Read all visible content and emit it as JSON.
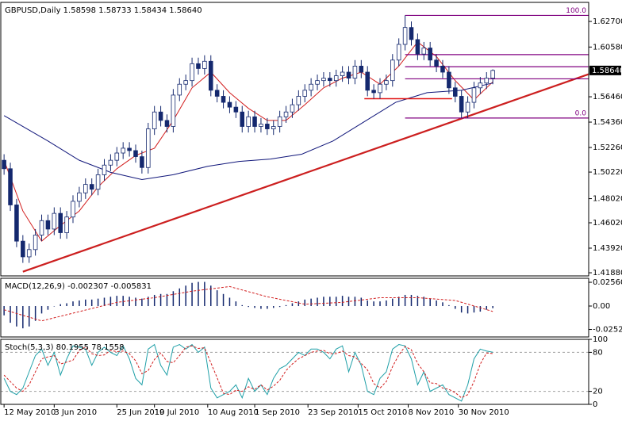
{
  "chart_data": [
    {
      "type": "candlestick",
      "title": "GBPUSD,Daily  1.58598 1.58733 1.58434 1.58640",
      "color": "#14286e",
      "xlim": [
        -1.3,
        186.6
      ],
      "ylim": [
        1.4162,
        1.6428
      ],
      "yticks": [
        {
          "value": 1.627,
          "label": "1.62700"
        },
        {
          "value": 1.6058,
          "label": "1.60580"
        },
        {
          "value": 1.5646,
          "label": "1.56460"
        },
        {
          "value": 1.5436,
          "label": "1.54360"
        },
        {
          "value": 1.5226,
          "label": "1.52260"
        },
        {
          "value": 1.5022,
          "label": "1.50220"
        },
        {
          "value": 1.4802,
          "label": "1.48020"
        },
        {
          "value": 1.4602,
          "label": "1.46020"
        },
        {
          "value": 1.4392,
          "label": "1.43920"
        },
        {
          "value": 1.4188,
          "label": "1.41880"
        }
      ],
      "last_price": {
        "value": 1.5864,
        "label": "1.58640"
      },
      "x": [
        0,
        2,
        4,
        6,
        8,
        10,
        12,
        14,
        16,
        18,
        20,
        22,
        24,
        26,
        28,
        30,
        32,
        34,
        36,
        38,
        40,
        42,
        44,
        46,
        48,
        50,
        52,
        54,
        56,
        58,
        60,
        62,
        64,
        66,
        68,
        70,
        72,
        74,
        76,
        78,
        80,
        82,
        84,
        86,
        88,
        90,
        92,
        94,
        96,
        98,
        100,
        102,
        104,
        106,
        108,
        110,
        112,
        114,
        116,
        118,
        120,
        122,
        124,
        126,
        128,
        130,
        132,
        134,
        136,
        138,
        140,
        142,
        144,
        146,
        148,
        150,
        152,
        154,
        156
      ],
      "open": [
        1.512,
        1.505,
        1.475,
        1.445,
        1.432,
        1.438,
        1.45,
        1.462,
        1.455,
        1.468,
        1.452,
        1.465,
        1.478,
        1.485,
        1.492,
        1.488,
        1.5,
        1.508,
        1.512,
        1.518,
        1.522,
        1.52,
        1.515,
        1.506,
        1.538,
        1.552,
        1.545,
        1.54,
        1.566,
        1.575,
        1.578,
        1.592,
        1.588,
        1.594,
        1.57,
        1.565,
        1.56,
        1.556,
        1.552,
        1.54,
        1.548,
        1.54,
        1.542,
        1.538,
        1.54,
        1.548,
        1.552,
        1.558,
        1.565,
        1.57,
        1.575,
        1.578,
        1.58,
        1.578,
        1.582,
        1.585,
        1.58,
        1.59,
        1.585,
        1.57,
        1.568,
        1.575,
        1.578,
        1.595,
        1.608,
        1.622,
        1.612,
        1.6,
        1.605,
        1.595,
        1.59,
        1.585,
        1.572,
        1.565,
        1.552,
        1.56,
        1.572,
        1.576,
        1.58
      ],
      "high": [
        1.517,
        1.51,
        1.48,
        1.45,
        1.443,
        1.455,
        1.467,
        1.467,
        1.473,
        1.473,
        1.47,
        1.483,
        1.49,
        1.497,
        1.497,
        1.505,
        1.513,
        1.517,
        1.523,
        1.527,
        1.527,
        1.525,
        1.52,
        1.543,
        1.557,
        1.557,
        1.55,
        1.571,
        1.58,
        1.583,
        1.597,
        1.597,
        1.599,
        1.599,
        1.575,
        1.57,
        1.565,
        1.561,
        1.557,
        1.553,
        1.553,
        1.547,
        1.547,
        1.545,
        1.553,
        1.557,
        1.563,
        1.57,
        1.575,
        1.58,
        1.583,
        1.585,
        1.585,
        1.587,
        1.59,
        1.59,
        1.595,
        1.595,
        1.59,
        1.575,
        1.58,
        1.583,
        1.6,
        1.613,
        1.632,
        1.627,
        1.617,
        1.61,
        1.61,
        1.6,
        1.595,
        1.59,
        1.577,
        1.57,
        1.565,
        1.577,
        1.581,
        1.585,
        1.58733
      ],
      "low": [
        1.5,
        1.47,
        1.44,
        1.427,
        1.427,
        1.433,
        1.445,
        1.45,
        1.45,
        1.447,
        1.447,
        1.46,
        1.473,
        1.48,
        1.483,
        1.483,
        1.495,
        1.503,
        1.507,
        1.513,
        1.515,
        1.51,
        1.501,
        1.501,
        1.533,
        1.54,
        1.535,
        1.535,
        1.561,
        1.57,
        1.573,
        1.583,
        1.583,
        1.565,
        1.56,
        1.555,
        1.551,
        1.547,
        1.535,
        1.535,
        1.535,
        1.535,
        1.533,
        1.533,
        1.535,
        1.543,
        1.547,
        1.553,
        1.56,
        1.565,
        1.57,
        1.573,
        1.573,
        1.573,
        1.577,
        1.575,
        1.575,
        1.58,
        1.565,
        1.563,
        1.563,
        1.57,
        1.573,
        1.59,
        1.603,
        1.607,
        1.595,
        1.595,
        1.59,
        1.585,
        1.58,
        1.567,
        1.56,
        1.547,
        1.547,
        1.555,
        1.567,
        1.571,
        1.575
      ],
      "close": [
        1.505,
        1.475,
        1.445,
        1.432,
        1.438,
        1.45,
        1.462,
        1.455,
        1.468,
        1.452,
        1.465,
        1.478,
        1.485,
        1.492,
        1.488,
        1.5,
        1.508,
        1.512,
        1.518,
        1.522,
        1.52,
        1.515,
        1.506,
        1.538,
        1.552,
        1.545,
        1.54,
        1.566,
        1.575,
        1.578,
        1.592,
        1.588,
        1.594,
        1.57,
        1.565,
        1.56,
        1.556,
        1.552,
        1.54,
        1.548,
        1.54,
        1.542,
        1.538,
        1.54,
        1.548,
        1.552,
        1.558,
        1.565,
        1.57,
        1.575,
        1.578,
        1.58,
        1.578,
        1.582,
        1.585,
        1.58,
        1.59,
        1.585,
        1.57,
        1.568,
        1.575,
        1.578,
        1.595,
        1.608,
        1.622,
        1.612,
        1.6,
        1.605,
        1.595,
        1.59,
        1.585,
        1.572,
        1.565,
        1.552,
        1.56,
        1.572,
        1.576,
        1.58,
        1.5864
      ],
      "overlays": [
        {
          "color": "#d21e1e",
          "x": [
            0,
            6,
            12,
            18,
            24,
            30,
            36,
            42,
            48,
            54,
            60,
            66,
            72,
            78,
            84,
            90,
            96,
            102,
            108,
            114,
            120,
            126,
            132,
            138,
            144,
            150,
            156
          ],
          "values": [
            1.512,
            1.47,
            1.445,
            1.458,
            1.47,
            1.49,
            1.505,
            1.516,
            1.522,
            1.545,
            1.572,
            1.585,
            1.568,
            1.555,
            1.545,
            1.545,
            1.558,
            1.572,
            1.58,
            1.585,
            1.575,
            1.59,
            1.61,
            1.598,
            1.578,
            1.562,
            1.577
          ]
        },
        {
          "color": "#10167a",
          "x": [
            0,
            14,
            24,
            34,
            44,
            54,
            65,
            75,
            85,
            95,
            105,
            115,
            125,
            135,
            146,
            156
          ],
          "values": [
            1.549,
            1.528,
            1.512,
            1.502,
            1.496,
            1.5,
            1.507,
            1.511,
            1.513,
            1.517,
            1.528,
            1.544,
            1.56,
            1.568,
            1.57,
            1.576
          ]
        }
      ],
      "trendlines": [
        {
          "color": "#cc1f1f",
          "x": [
            6,
            187
          ],
          "values": [
            1.4197,
            1.5837
          ]
        },
        {
          "color": "#e01010",
          "x": [
            115,
            143
          ],
          "values": [
            1.563,
            1.563
          ]
        }
      ],
      "fibo": {
        "color": "#800080",
        "x": 128,
        "high": 1.632,
        "low": 1.547,
        "levels": [
          {
            "value": 100,
            "label": "100.0"
          },
          61.8,
          50,
          38.2,
          {
            "value": 0,
            "label": "0.0"
          }
        ]
      }
    },
    {
      "type": "macd",
      "title": "MACD(12,26,9) -0.002307 -0.005831",
      "color": "#14286e",
      "xlim": [
        -1.3,
        186.6
      ],
      "ylim": [
        -0.0333,
        0.0299
      ],
      "yticks": [
        {
          "value": 0.0256,
          "label": "0.02560"
        },
        {
          "value": 0,
          "label": "0.00"
        },
        {
          "value": -0.02522,
          "label": "-0.02522"
        }
      ],
      "x": [
        0,
        2,
        4,
        6,
        8,
        10,
        12,
        14,
        16,
        18,
        20,
        22,
        24,
        26,
        28,
        30,
        32,
        34,
        36,
        38,
        40,
        42,
        44,
        46,
        48,
        50,
        52,
        54,
        56,
        58,
        60,
        62,
        64,
        66,
        68,
        70,
        72,
        74,
        76,
        78,
        80,
        82,
        84,
        86,
        88,
        90,
        92,
        94,
        96,
        98,
        100,
        102,
        104,
        106,
        108,
        110,
        112,
        114,
        116,
        118,
        120,
        122,
        124,
        126,
        128,
        130,
        132,
        134,
        136,
        138,
        140,
        142,
        144,
        146,
        148,
        150,
        152,
        154,
        156
      ],
      "values": [
        -0.01,
        -0.018,
        -0.022,
        -0.024,
        -0.022,
        -0.016,
        -0.008,
        -0.004,
        0.0,
        0.002,
        0.003,
        0.005,
        0.006,
        0.007,
        0.007,
        0.008,
        0.009,
        0.01,
        0.011,
        0.011,
        0.01,
        0.009,
        0.008,
        0.01,
        0.012,
        0.013,
        0.013,
        0.016,
        0.019,
        0.022,
        0.025,
        0.026,
        0.026,
        0.022,
        0.017,
        0.013,
        0.009,
        0.005,
        0.001,
        -0.001,
        -0.002,
        -0.003,
        -0.003,
        -0.002,
        -0.001,
        0.001,
        0.003,
        0.005,
        0.007,
        0.008,
        0.009,
        0.01,
        0.01,
        0.01,
        0.011,
        0.01,
        0.01,
        0.009,
        0.006,
        0.005,
        0.005,
        0.006,
        0.008,
        0.01,
        0.012,
        0.012,
        0.011,
        0.01,
        0.008,
        0.006,
        0.004,
        0.001,
        -0.003,
        -0.007,
        -0.008,
        -0.007,
        -0.006,
        -0.004,
        -0.002307
      ],
      "signal": {
        "color": "#d21e1e",
        "x": [
          0,
          12,
          24,
          36,
          48,
          60,
          72,
          84,
          96,
          108,
          120,
          132,
          144,
          156
        ],
        "values": [
          -0.004,
          -0.016,
          -0.006,
          0.004,
          0.009,
          0.016,
          0.021,
          0.01,
          0.002,
          0.004,
          0.009,
          0.009,
          0.006,
          -0.005831
        ]
      }
    },
    {
      "type": "stochastic",
      "title": "Stoch(5,3,3) 80.1955 78.1558",
      "xlim": [
        -1.3,
        186.6
      ],
      "ylim": [
        0,
        100
      ],
      "yticks": [
        100,
        80,
        20,
        0
      ],
      "grid": true,
      "xticks": [
        {
          "value": 0,
          "label": "12 May 2010"
        },
        {
          "value": 16,
          "label": "3 Jun 2010"
        },
        {
          "value": 36,
          "label": "25 Jun 2010"
        },
        {
          "value": 48,
          "label": "19 Jul 2010"
        },
        {
          "value": 65,
          "label": "10 Aug 2010"
        },
        {
          "value": 80,
          "label": "1 Sep 2010"
        },
        {
          "value": 97,
          "label": "23 Sep 2010"
        },
        {
          "value": 113,
          "label": "15 Oct 2010"
        },
        {
          "value": 129,
          "label": "8 Nov 2010"
        },
        {
          "value": 145,
          "label": "30 Nov 2010"
        }
      ],
      "x": [
        0,
        2,
        4,
        6,
        8,
        10,
        12,
        14,
        16,
        18,
        20,
        22,
        24,
        26,
        28,
        30,
        32,
        34,
        36,
        38,
        40,
        42,
        44,
        46,
        48,
        50,
        52,
        54,
        56,
        58,
        60,
        62,
        64,
        66,
        68,
        70,
        72,
        74,
        76,
        78,
        80,
        82,
        84,
        86,
        88,
        90,
        92,
        94,
        96,
        98,
        100,
        102,
        104,
        106,
        108,
        110,
        112,
        114,
        116,
        118,
        120,
        122,
        124,
        126,
        128,
        130,
        132,
        134,
        136,
        138,
        140,
        142,
        144,
        146,
        148,
        150,
        152,
        154,
        156
      ],
      "series": [
        {
          "color": "#20a0a8",
          "values": [
            40,
            20,
            15,
            25,
            50,
            75,
            85,
            60,
            80,
            45,
            70,
            90,
            88,
            85,
            60,
            80,
            88,
            80,
            75,
            90,
            70,
            40,
            30,
            85,
            92,
            60,
            45,
            88,
            92,
            85,
            92,
            80,
            88,
            25,
            10,
            15,
            20,
            30,
            10,
            40,
            20,
            30,
            15,
            40,
            55,
            60,
            70,
            80,
            75,
            85,
            85,
            80,
            70,
            85,
            90,
            50,
            80,
            60,
            20,
            15,
            40,
            50,
            85,
            92,
            90,
            70,
            30,
            50,
            20,
            25,
            30,
            15,
            10,
            5,
            30,
            70,
            85,
            82,
            80.1955
          ]
        },
        {
          "color": "#d21e1e",
          "dashed": true,
          "values": [
            45,
            35,
            25,
            20,
            30,
            50,
            70,
            73,
            75,
            62,
            65,
            68,
            83,
            88,
            78,
            75,
            76,
            83,
            81,
            82,
            78,
            67,
            47,
            52,
            69,
            79,
            66,
            64,
            75,
            88,
            90,
            86,
            87,
            64,
            41,
            17,
            15,
            22,
            20,
            27,
            23,
            30,
            22,
            28,
            37,
            52,
            62,
            70,
            75,
            80,
            82,
            83,
            78,
            78,
            82,
            75,
            73,
            63,
            53,
            32,
            25,
            35,
            58,
            76,
            89,
            84,
            63,
            50,
            33,
            32,
            25,
            23,
            18,
            10,
            15,
            35,
            62,
            79,
            78.1558
          ]
        }
      ]
    }
  ]
}
